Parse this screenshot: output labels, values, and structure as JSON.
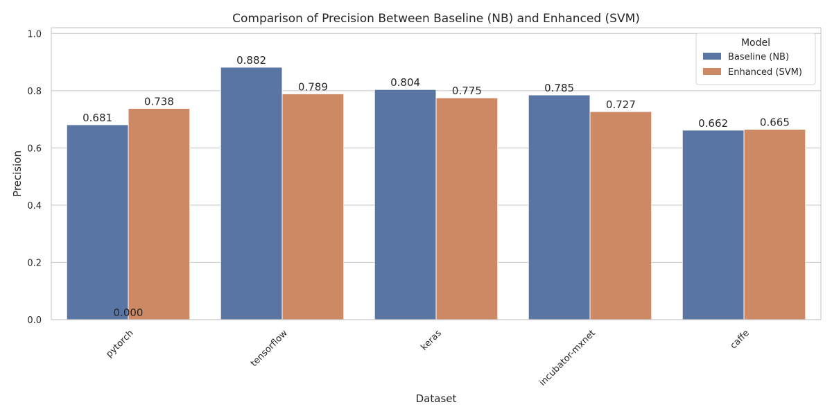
{
  "chart_data": {
    "type": "bar",
    "title": "Comparison of Precision Between Baseline (NB) and Enhanced (SVM)",
    "xlabel": "Dataset",
    "ylabel": "Precision",
    "ylim": [
      0,
      1.02
    ],
    "yticks": [
      0.0,
      0.2,
      0.4,
      0.6,
      0.8,
      1.0
    ],
    "ytick_labels": [
      "0.0",
      "0.2",
      "0.4",
      "0.6",
      "0.8",
      "1.0"
    ],
    "categories": [
      "pytorch",
      "tensorflow",
      "keras",
      "incubator-mxnet",
      "caffe"
    ],
    "series": [
      {
        "name": "Baseline (NB)",
        "color": "#5875a4",
        "values": [
          0.681,
          0.882,
          0.804,
          0.785,
          0.662
        ],
        "labels": [
          "0.681",
          "0.882",
          "0.804",
          "0.785",
          "0.662"
        ]
      },
      {
        "name": "Enhanced (SVM)",
        "color": "#cc8963",
        "values": [
          0.738,
          0.789,
          0.775,
          0.727,
          0.665
        ],
        "labels": [
          "0.738",
          "0.789",
          "0.775",
          "0.727",
          "0.665"
        ]
      }
    ],
    "annotations": [
      {
        "text": "0.000",
        "category": "pytorch",
        "value": 0.0
      }
    ],
    "grid": "y",
    "legend": {
      "title": "Model",
      "placement": "top-right"
    }
  }
}
